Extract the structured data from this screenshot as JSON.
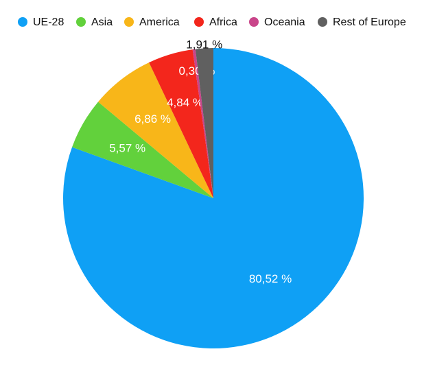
{
  "chart_data": {
    "type": "pie",
    "categories": [
      "UE-28",
      "Asia",
      "America",
      "Africa",
      "Oceania",
      "Rest of Europe"
    ],
    "values": [
      80.52,
      5.57,
      6.86,
      4.84,
      0.3,
      1.91
    ],
    "value_labels": [
      "80,52 %",
      "5,57 %",
      "6,86 %",
      "4,84 %",
      "0,30 %",
      "1,91 %"
    ],
    "colors": [
      "#0fa0f5",
      "#62d13c",
      "#f8b619",
      "#f3261c",
      "#c9458a",
      "#606060"
    ],
    "legend": "top"
  }
}
